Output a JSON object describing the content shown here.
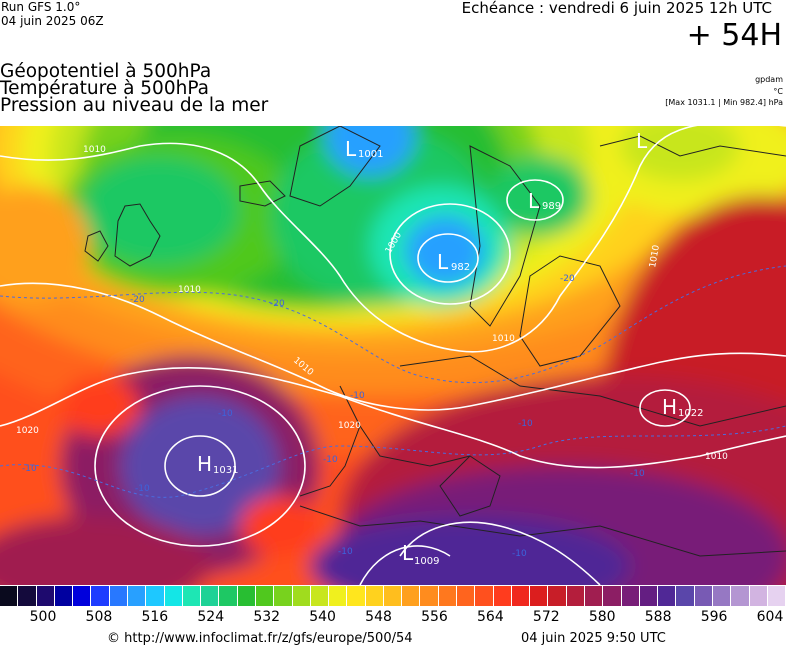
{
  "header": {
    "run": "Run GFS 1.0°",
    "run_time": "04 juin 2025 06Z",
    "valid": "Echéance : vendredi 6 juin 2025 12h UTC",
    "lead": "+ 54H"
  },
  "fields": {
    "line1": "Géopotentiel à 500hPa",
    "line2": "Température à 500hPa",
    "line3": "Pression au niveau de la mer"
  },
  "units": {
    "geopotential": "gpdam",
    "temperature": "°C",
    "pressure_range": "[Max 1031.1 | Min 982.4] hPa"
  },
  "pressure_centers": [
    {
      "type": "L",
      "value": "1001"
    },
    {
      "type": "L",
      "value": "989"
    },
    {
      "type": "L",
      "value": "982"
    },
    {
      "type": "H",
      "value": "1031"
    },
    {
      "type": "H",
      "value": "1022"
    },
    {
      "type": "L",
      "value": "1009"
    },
    {
      "type": "L",
      "value": ""
    }
  ],
  "isobar_labels": [
    "1010",
    "1000",
    "1010",
    "1010",
    "1010",
    "1020",
    "1020",
    "1010",
    "1010"
  ],
  "isotherm_labels": [
    "-20",
    "-20",
    "-20",
    "-10",
    "-10",
    "-10",
    "-10",
    "-10",
    "-10",
    "-10",
    "-10",
    "-10"
  ],
  "colorbar": {
    "ticks": [
      "500",
      "508",
      "516",
      "524",
      "532",
      "540",
      "548",
      "556",
      "564",
      "572",
      "580",
      "588",
      "596",
      "604"
    ],
    "colors": [
      "#0a0a1e",
      "#140a3c",
      "#1e0a6e",
      "#0000a0",
      "#0000dc",
      "#1e3cff",
      "#2878ff",
      "#28a0ff",
      "#1ec8ff",
      "#14e6e6",
      "#1ee6b4",
      "#1ed296",
      "#1ec864",
      "#28be32",
      "#50c81e",
      "#78d21e",
      "#a0dc1e",
      "#c8e61e",
      "#f0f01e",
      "#ffe61e",
      "#ffd21e",
      "#ffbe1e",
      "#ffa01e",
      "#ff8c1e",
      "#ff781e",
      "#ff641e",
      "#ff501e",
      "#ff3c1e",
      "#f0281e",
      "#dc1e1e",
      "#c81e28",
      "#b41e3c",
      "#a01e50",
      "#8c1e64",
      "#781e78",
      "#641e82",
      "#502896",
      "#5a46aa",
      "#785ab4",
      "#9678c3",
      "#b496d2",
      "#d2b4e1",
      "#e6d2f0"
    ]
  },
  "footer": {
    "source": "© http://www.infoclimat.fr/z/gfs/europe/500/54",
    "generated": "04 juin 2025  9:50 UTC"
  }
}
